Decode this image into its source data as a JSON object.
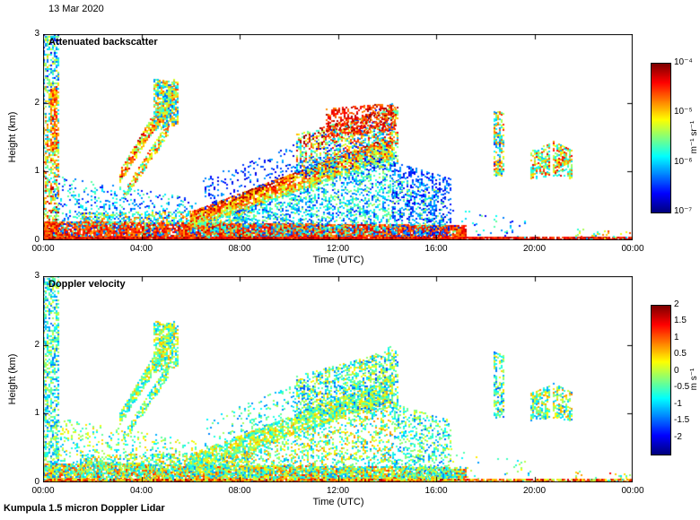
{
  "header": {
    "date": "13 Mar 2020"
  },
  "footer": {
    "instrument": "Kumpula 1.5 micron Doppler Lidar"
  },
  "chart_data": [
    {
      "type": "heatmap",
      "title": "Attenuated backscatter",
      "xlabel": "Time (UTC)",
      "ylabel": "Height (km)",
      "x_hours_range": [
        0,
        24
      ],
      "x_tick_hours": [
        0,
        4,
        8,
        12,
        16,
        20,
        24
      ],
      "x_tick_labels": [
        "00:00",
        "04:00",
        "08:00",
        "12:00",
        "16:00",
        "20:00",
        "00:00"
      ],
      "ylim": [
        0,
        3
      ],
      "y_ticks": [
        0,
        1,
        2,
        3
      ],
      "colormap": "jet",
      "grid": false,
      "colorbar": {
        "units": "m⁻¹ sr⁻¹",
        "scale": "log10",
        "tick_labels": [
          "10⁻⁴",
          "10⁻⁵",
          "10⁻⁶",
          "10⁻⁷"
        ],
        "value_range_log10": [
          -7,
          -4
        ],
        "position": "right"
      },
      "description": "Time-height curtain of attenuated backscatter, 00:00-24:00 UTC. Strong surface aerosol layer (10⁻⁵–10⁻⁴ m⁻¹ sr⁻¹) below ~0.3 km from midnight to ~17:00; mixed plume to 3 km at 00:00-00:40; sloping streaks 03:00-05:30 rising 0.8→2.3 km; boundary layer top rising from ~0.4 km at 06:00 to ~1.5 km at 14:00 with high-backscatter cloud tops to ~2 km at 11:00-14:30; weak scattered returns 14:00-16:30 below 1.2 km; isolated elevated layers near 18:30 and 20:00-21:30 around 0.9-1.4 km; persistent high-backscatter lowest gate all day.",
      "features_legend": "[t_start_h, t_end_h, h_bottom_start_km, h_bottom_end_km, h_top_start_km, h_top_end_km, fill_density_0to1, value_norm_0to1_over_colorbar_range, value_spread, vertical_gradient]",
      "features": [
        [
          0.0,
          0.6,
          0.0,
          0.0,
          3.0,
          3.0,
          0.55,
          0.55,
          0.3,
          -0.2
        ],
        [
          0.28,
          0.5,
          1.3,
          1.35,
          2.2,
          2.25,
          0.8,
          0.78,
          0.15,
          0
        ],
        [
          0.0,
          17.2,
          0.0,
          0.0,
          0.28,
          0.22,
          0.92,
          0.82,
          0.13,
          0
        ],
        [
          1.5,
          8.5,
          0.22,
          0.26,
          0.4,
          0.44,
          0.55,
          0.55,
          0.25,
          0
        ],
        [
          0.4,
          6.2,
          0.05,
          0.05,
          0.95,
          0.6,
          0.22,
          0.3,
          0.18,
          0
        ],
        [
          3.1,
          5.3,
          0.85,
          2.05,
          1.02,
          2.35,
          0.85,
          0.7,
          0.25,
          0
        ],
        [
          3.3,
          5.1,
          0.6,
          1.55,
          0.74,
          1.75,
          0.7,
          0.6,
          0.25,
          0
        ],
        [
          4.5,
          5.5,
          1.6,
          1.7,
          2.35,
          2.3,
          0.75,
          0.5,
          0.3,
          0
        ],
        [
          6.0,
          14.2,
          0.18,
          1.2,
          0.42,
          1.52,
          0.85,
          0.72,
          0.2,
          0.15
        ],
        [
          6.0,
          14.2,
          0.05,
          0.05,
          0.2,
          1.2,
          0.42,
          0.35,
          0.2,
          0
        ],
        [
          6.5,
          14.2,
          0.45,
          1.55,
          0.9,
          2.0,
          0.17,
          0.2,
          0.12,
          0
        ],
        [
          10.3,
          14.4,
          0.9,
          1.1,
          1.55,
          1.95,
          0.5,
          0.55,
          0.35,
          0.2
        ],
        [
          11.5,
          14.3,
          1.5,
          1.6,
          1.92,
          2.0,
          0.5,
          0.85,
          0.12,
          0
        ],
        [
          14.2,
          16.6,
          0.05,
          0.05,
          1.15,
          0.9,
          0.4,
          0.2,
          0.13,
          0
        ],
        [
          14.2,
          16.3,
          0.1,
          0.1,
          0.9,
          0.7,
          0.12,
          0.45,
          0.15,
          0
        ],
        [
          16.5,
          19.8,
          0.0,
          0.0,
          0.5,
          0.3,
          0.07,
          0.3,
          0.2,
          0
        ],
        [
          18.35,
          18.75,
          0.95,
          0.95,
          1.9,
          1.85,
          0.6,
          0.5,
          0.35,
          0
        ],
        [
          19.85,
          20.65,
          0.9,
          0.95,
          1.3,
          1.42,
          0.65,
          0.6,
          0.3,
          0
        ],
        [
          20.75,
          21.55,
          0.95,
          0.9,
          1.45,
          1.3,
          0.65,
          0.6,
          0.3,
          0
        ],
        [
          0.0,
          24.0,
          0.0,
          0.0,
          0.05,
          0.05,
          0.88,
          0.88,
          0.1,
          0
        ],
        [
          21.5,
          23.9,
          0.0,
          0.0,
          0.18,
          0.12,
          0.25,
          0.55,
          0.3,
          0
        ]
      ]
    },
    {
      "type": "heatmap",
      "title": "Doppler velocity",
      "xlabel": "Time (UTC)",
      "ylabel": "Height (km)",
      "x_hours_range": [
        0,
        24
      ],
      "x_tick_hours": [
        0,
        4,
        8,
        12,
        16,
        20,
        24
      ],
      "x_tick_labels": [
        "00:00",
        "04:00",
        "08:00",
        "12:00",
        "16:00",
        "20:00",
        "00:00"
      ],
      "ylim": [
        0,
        3
      ],
      "y_ticks": [
        0,
        1,
        2,
        3
      ],
      "colormap": "jet",
      "grid": false,
      "colorbar": {
        "units": "m s⁻¹",
        "scale": "linear",
        "tick_values": [
          2,
          1.5,
          1,
          0.5,
          0,
          -0.5,
          -1,
          -1.5,
          -2
        ],
        "tick_labels": [
          "2",
          "1.5",
          "1",
          "0.5",
          "0",
          "-0.5",
          "-1",
          "-1.5",
          "-2"
        ],
        "value_range": [
          -2.5,
          2
        ],
        "position": "right"
      },
      "description": "Doppler velocity for the same scene, mostly between -1 and +0.5 m s⁻¹ (green/cyan/blue speckle) in the aerosol and cloud regions, with mixed positive (orange/red) and negative values in the surface layer and reddish values in the lowest range gate across the whole day.",
      "features_legend": "[t_start_h, t_end_h, h_bottom_start_km, h_bottom_end_km, h_top_start_km, h_top_end_km, fill_density_0to1, value_norm_0to1_over_colorbar_range, value_spread, vertical_gradient]",
      "features": [
        [
          0.0,
          0.6,
          0.0,
          0.0,
          3.0,
          3.0,
          0.55,
          0.42,
          0.2,
          0
        ],
        [
          0.0,
          17.2,
          0.0,
          0.0,
          0.28,
          0.22,
          0.88,
          0.55,
          0.3,
          0
        ],
        [
          1.5,
          8.5,
          0.22,
          0.26,
          0.4,
          0.44,
          0.5,
          0.5,
          0.25,
          0
        ],
        [
          0.4,
          6.2,
          0.05,
          0.05,
          0.95,
          0.6,
          0.2,
          0.48,
          0.2,
          0
        ],
        [
          3.1,
          5.3,
          0.85,
          2.05,
          1.02,
          2.35,
          0.8,
          0.5,
          0.2,
          0
        ],
        [
          3.3,
          5.1,
          0.6,
          1.55,
          0.74,
          1.75,
          0.65,
          0.48,
          0.2,
          0
        ],
        [
          4.5,
          5.5,
          1.6,
          1.7,
          2.35,
          2.3,
          0.7,
          0.5,
          0.22,
          0
        ],
        [
          6.0,
          14.2,
          0.18,
          1.2,
          0.42,
          1.52,
          0.8,
          0.52,
          0.2,
          0
        ],
        [
          6.0,
          14.2,
          0.05,
          0.05,
          0.2,
          1.2,
          0.38,
          0.5,
          0.25,
          0
        ],
        [
          6.5,
          14.2,
          0.45,
          1.55,
          0.9,
          2.0,
          0.15,
          0.4,
          0.15,
          0
        ],
        [
          10.3,
          14.4,
          0.9,
          1.1,
          1.55,
          1.95,
          0.5,
          0.45,
          0.25,
          0
        ],
        [
          14.2,
          16.6,
          0.05,
          0.05,
          1.15,
          0.9,
          0.38,
          0.42,
          0.2,
          0
        ],
        [
          16.5,
          19.8,
          0.0,
          0.0,
          0.5,
          0.3,
          0.06,
          0.45,
          0.2,
          0
        ],
        [
          18.35,
          18.75,
          0.95,
          0.95,
          1.9,
          1.85,
          0.55,
          0.45,
          0.25,
          0
        ],
        [
          19.85,
          20.65,
          0.9,
          0.95,
          1.3,
          1.42,
          0.6,
          0.5,
          0.25,
          0
        ],
        [
          20.75,
          21.55,
          0.95,
          0.9,
          1.45,
          1.3,
          0.6,
          0.5,
          0.25,
          0
        ],
        [
          0.0,
          24.0,
          0.0,
          0.0,
          0.05,
          0.05,
          0.88,
          0.75,
          0.22,
          0
        ],
        [
          21.5,
          23.9,
          0.0,
          0.0,
          0.18,
          0.12,
          0.2,
          0.6,
          0.3,
          0
        ]
      ]
    }
  ]
}
